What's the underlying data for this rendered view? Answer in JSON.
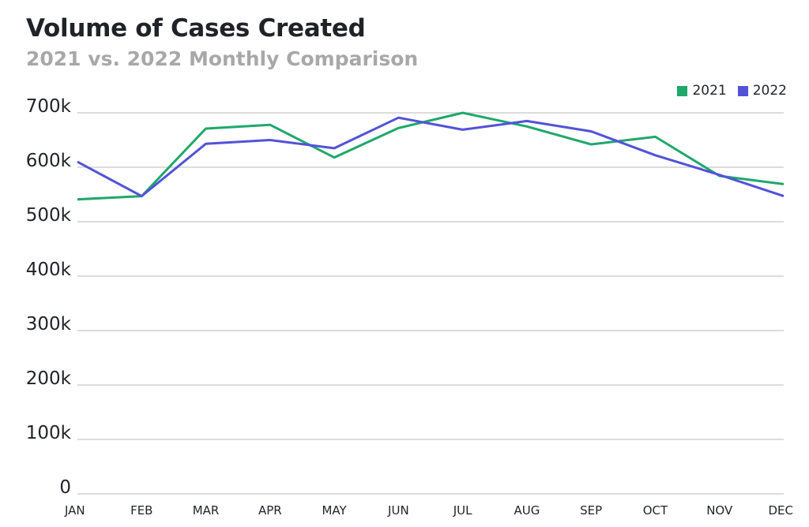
{
  "chart_data": {
    "type": "line",
    "title": "Volume of Cases Created",
    "subtitle": "2021 vs. 2022 Monthly Comparison",
    "categories": [
      "JAN",
      "FEB",
      "MAR",
      "APR",
      "MAY",
      "JUN",
      "JUL",
      "AUG",
      "SEP",
      "OCT",
      "NOV",
      "DEC"
    ],
    "series": [
      {
        "name": "2021",
        "color": "#1fa86b",
        "values": [
          541000,
          547000,
          671000,
          678000,
          618000,
          672000,
          700000,
          675000,
          642000,
          656000,
          584000,
          569000
        ]
      },
      {
        "name": "2022",
        "color": "#5252d9",
        "values": [
          610000,
          547000,
          643000,
          650000,
          635000,
          691000,
          669000,
          685000,
          666000,
          622000,
          586000,
          547000
        ]
      }
    ],
    "ylim": [
      0,
      700000
    ],
    "yticks": [
      {
        "value": 0,
        "label": "0"
      },
      {
        "value": 100000,
        "label": "100k"
      },
      {
        "value": 200000,
        "label": "200k"
      },
      {
        "value": 300000,
        "label": "300k"
      },
      {
        "value": 400000,
        "label": "400k"
      },
      {
        "value": 500000,
        "label": "500k"
      },
      {
        "value": 600000,
        "label": "600k"
      },
      {
        "value": 700000,
        "label": "700k"
      }
    ],
    "xlabel": "",
    "ylabel": "",
    "grid": true,
    "legend_position": "top-right",
    "gridline_color": "#c8c8c8",
    "tick_label_color": "#1f2328"
  }
}
